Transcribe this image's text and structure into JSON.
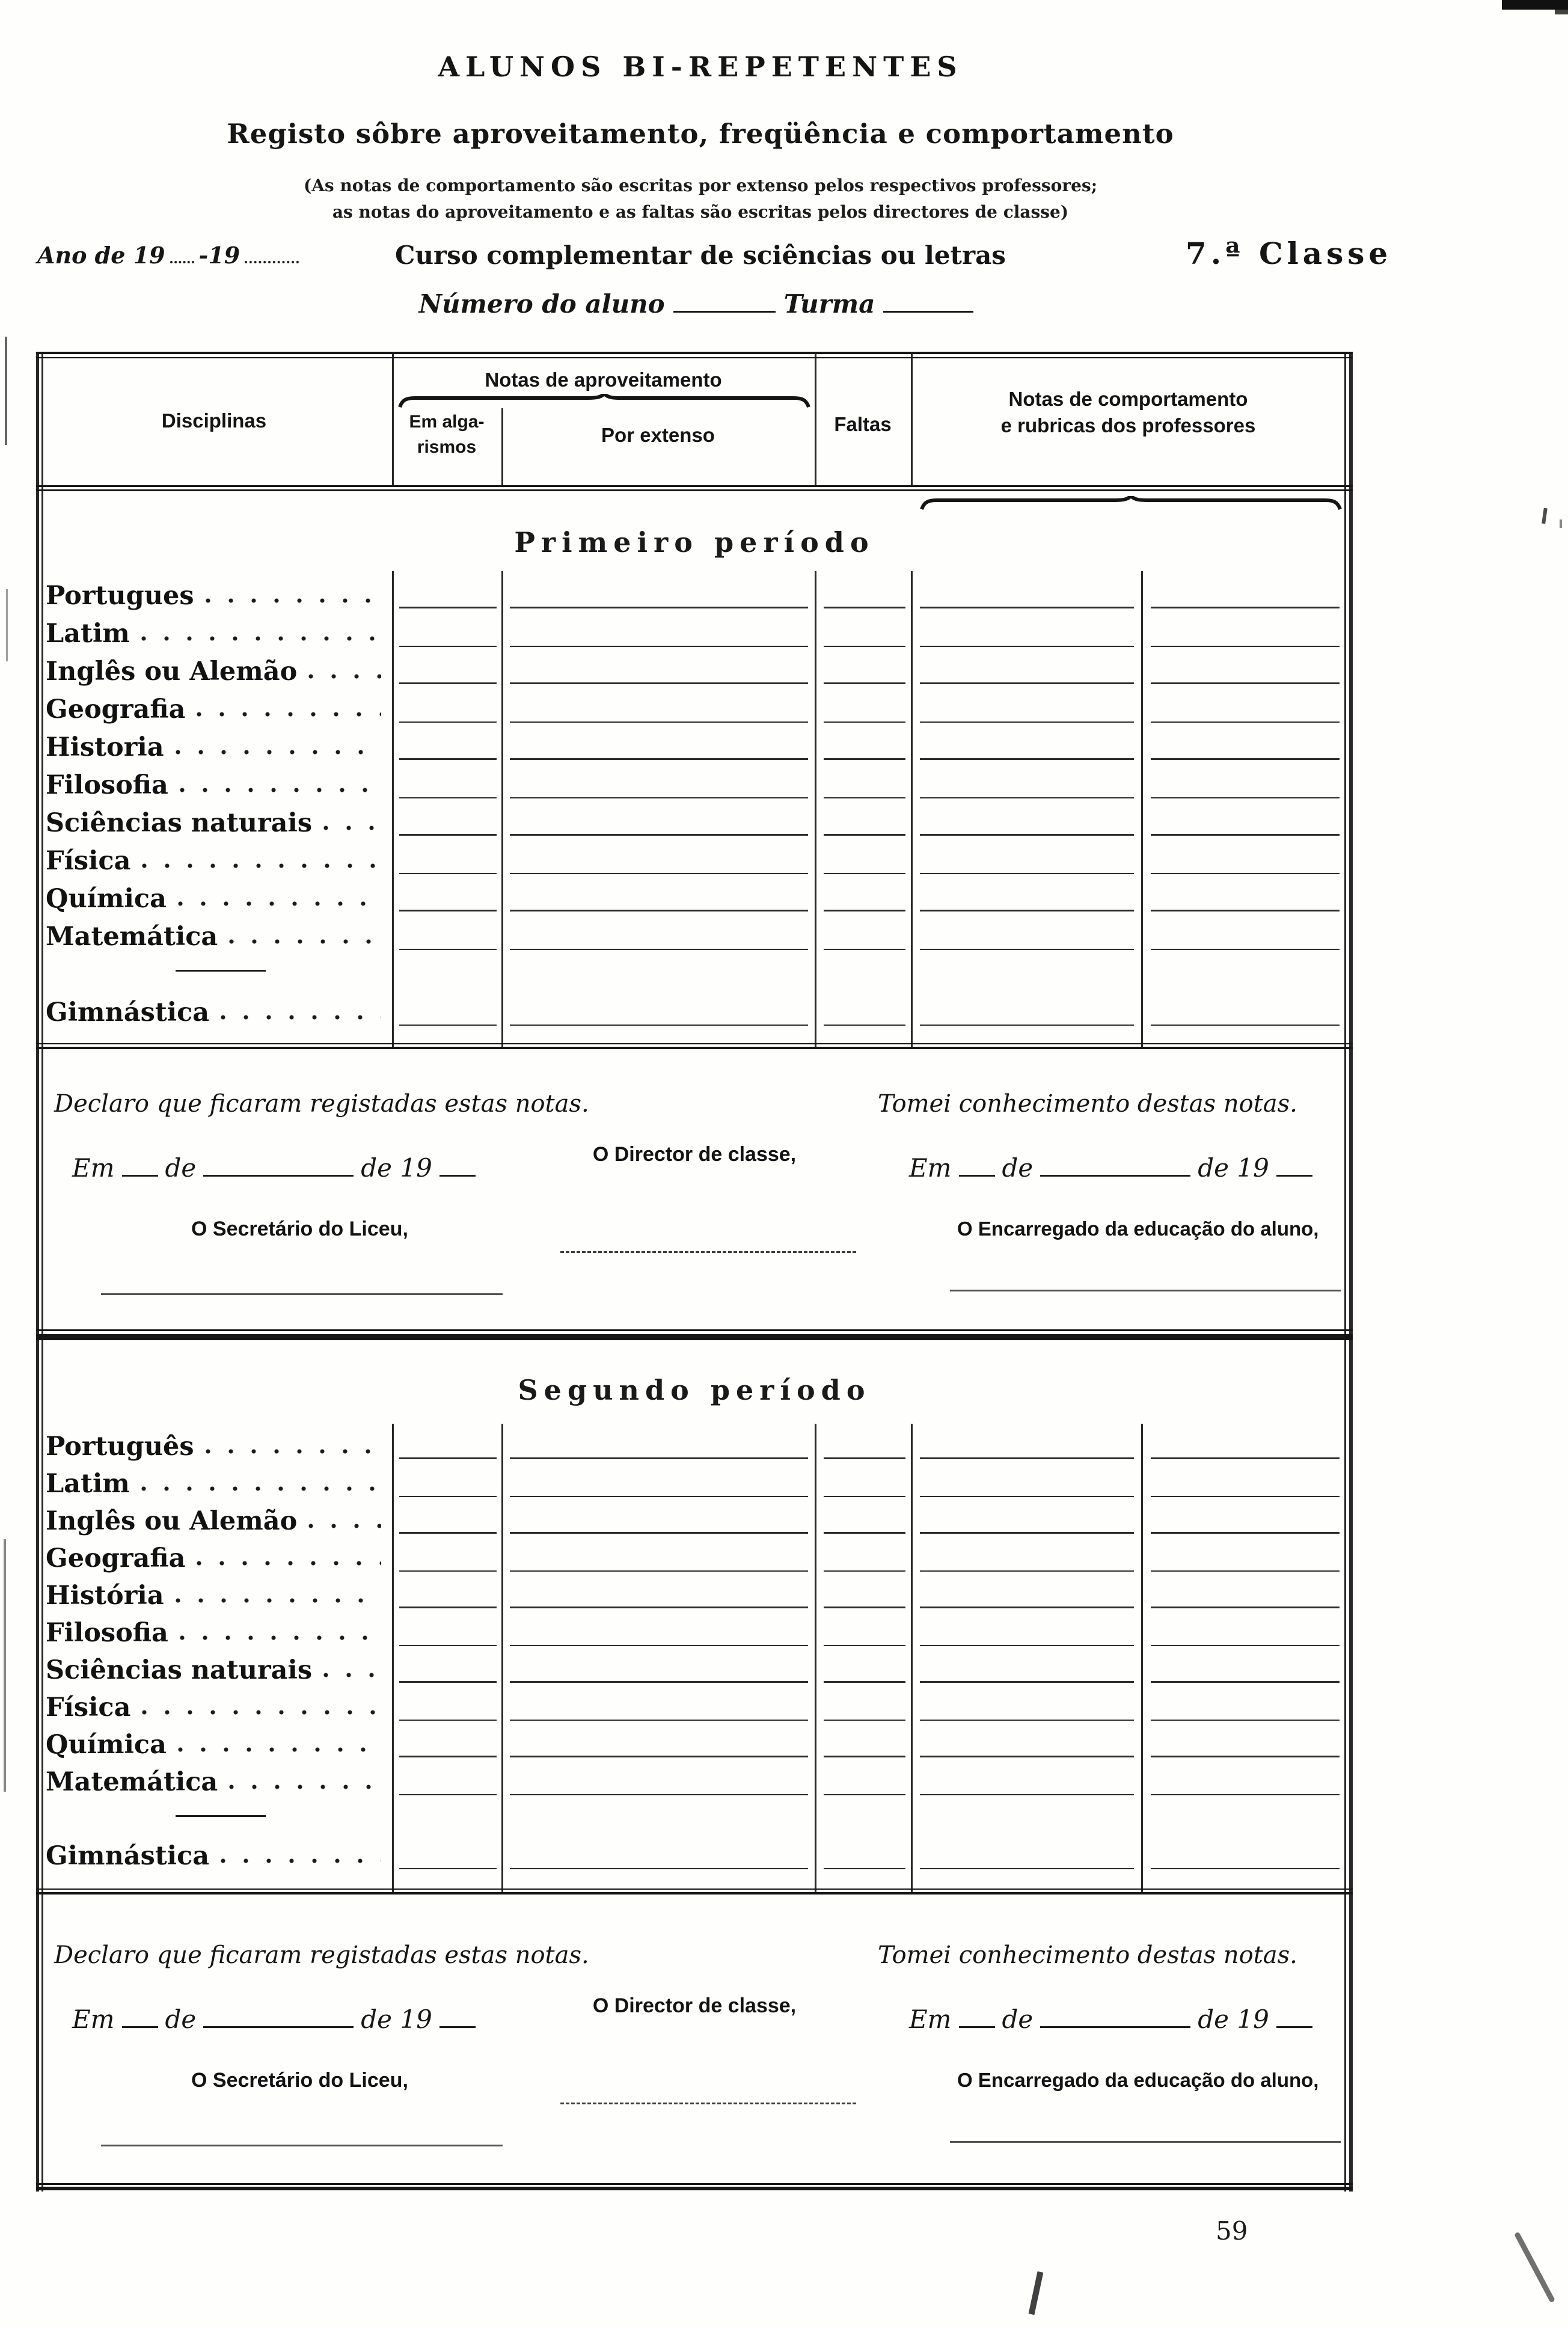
{
  "meta": {
    "page_number": "59"
  },
  "masthead": {
    "title": "ALUNOS BI-REPETENTES",
    "subtitle": "Registo sôbre aproveitamento, freqüência e comportamento",
    "note_line1": "(As notas de comportamento são escritas por extenso pelos respectivos professores;",
    "note_line2": "as notas do aproveitamento e as faltas são escritas pelos directores de classe)",
    "year_line": {
      "prefix": "Ano de 19",
      "separator": "-19"
    },
    "course_title": "Curso complementar de sciências ou letras",
    "class_label": "7.ª Classe",
    "student_number_label": "Número do aluno",
    "class_group_label": "Turma"
  },
  "grid_header": {
    "disciplinas": "Disciplinas",
    "aproveitamento": "Notas de aproveitamento",
    "algarismos_line1": "Em alga-",
    "algarismos_line2": "rismos",
    "por_extenso": "Por extenso",
    "faltas": "Faltas",
    "comportamento_line1": "Notas de comportamento",
    "comportamento_line2": "e rubricas dos professores"
  },
  "sections": [
    {
      "title": "Primeiro período",
      "subjects": [
        "Portugues",
        "Latim",
        "Inglês ou Alemão",
        "Geografia",
        "Historia",
        "Filosofia",
        "Sciências naturais",
        "Física",
        "Química",
        "Matemática",
        "Gimnástica"
      ]
    },
    {
      "title": "Segundo período",
      "subjects": [
        "Português",
        "Latim",
        "Inglês ou Alemão",
        "Geografia",
        "História",
        "Filosofia",
        "Sciências naturais",
        "Física",
        "Química",
        "Matemática",
        "Gimnástica"
      ]
    }
  ],
  "declarations": {
    "registrar_statement": "Declaro que ficaram registadas estas notas.",
    "acknowledge_statement": "Tomei conhecimento destas notas.",
    "date_em": "Em",
    "date_de": "de",
    "date_de19": "de 19",
    "director_label": "O Director de classe,",
    "secretary_label": "O Secretário do Liceu,",
    "guardian_label": "O Encarregado da educação do aluno,"
  }
}
